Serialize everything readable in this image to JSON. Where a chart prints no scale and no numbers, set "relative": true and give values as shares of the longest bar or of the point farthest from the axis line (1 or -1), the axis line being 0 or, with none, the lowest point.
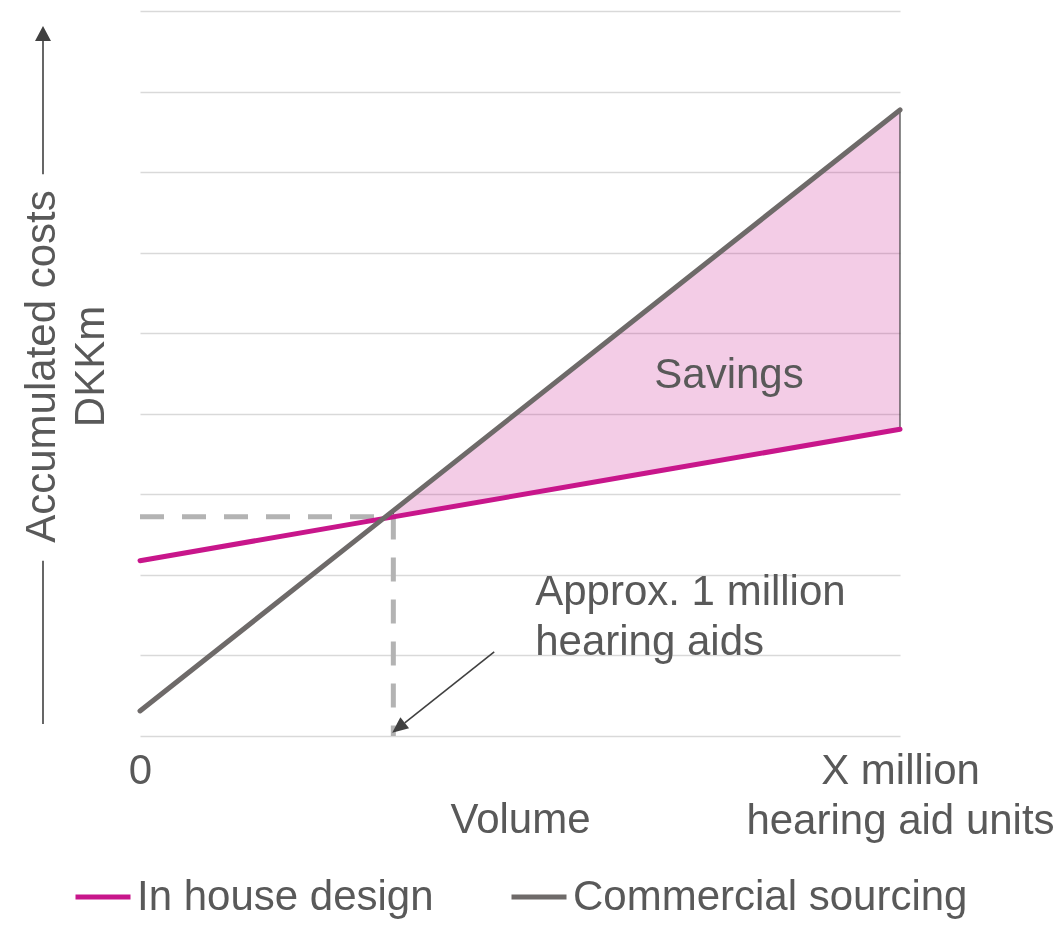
{
  "chart_data": {
    "type": "line",
    "xlabel": "Volume",
    "ylabel": "Accumulated costs DKKm",
    "relative": true,
    "categories": [
      "0",
      null,
      null,
      "X million hearing aid units"
    ],
    "series": [
      {
        "name": "In house design",
        "color": "#c8168b",
        "values": [
          0.28,
          0.35,
          0.42,
          0.49
        ],
        "lower": [
          null,
          0.35,
          0.42,
          0.49
        ],
        "upper": [
          null,
          0.36,
          0.68,
          1
        ]
      },
      {
        "name": "Commercial sourcing",
        "color": "#6e6a69",
        "values": [
          0.04,
          0.36,
          0.68,
          1
        ]
      },
      {
        "type": "step",
        "color": "#b3b3b3",
        "line_style": "dashed",
        "values": [
          0.35,
          0,
          null,
          null
        ]
      }
    ],
    "annotations": [
      "Savings",
      "Approx. 1 million hearing aids"
    ],
    "grid": "y",
    "legend": "bottom"
  }
}
